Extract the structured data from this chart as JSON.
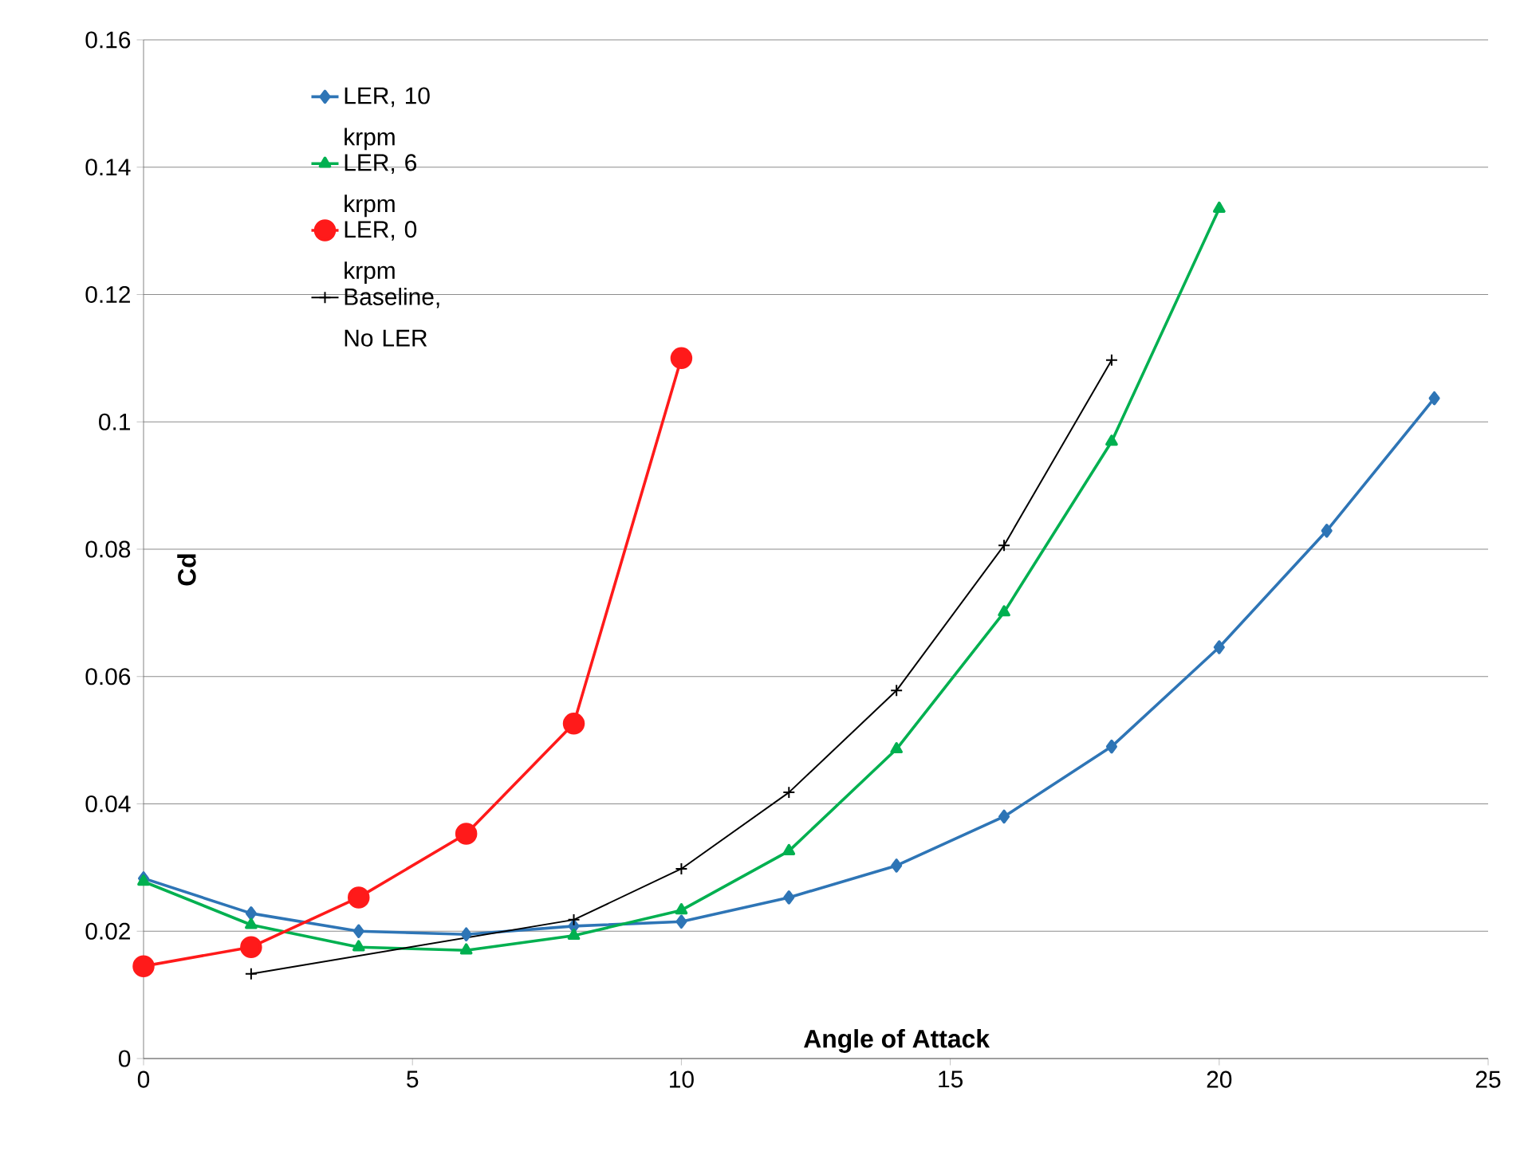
{
  "chart_data": {
    "type": "line",
    "xlabel": "Angle of Attack",
    "ylabel": "Cd",
    "xlim": [
      0,
      25
    ],
    "xticks": [
      0,
      5,
      10,
      15,
      20,
      25
    ],
    "ylim": [
      0,
      0.16
    ],
    "yticks": [
      0,
      0.02,
      0.04,
      0.06,
      0.08,
      0.1,
      0.12,
      0.14,
      0.16
    ],
    "grid": "y",
    "legend": "top left",
    "line_style": "solid",
    "series": [
      {
        "name": "LER, 10 krpm",
        "color": "#2e75b6",
        "marker": "diamond",
        "x": [
          0,
          2,
          4,
          6,
          8,
          10,
          12,
          14,
          16,
          18,
          20,
          22,
          24
        ],
        "values": [
          0.0283,
          0.0228,
          0.02,
          0.0195,
          0.0208,
          0.0215,
          0.0253,
          0.0303,
          0.038,
          0.049,
          0.0646,
          0.0829,
          0.1037
        ]
      },
      {
        "name": "LER, 6 krpm",
        "color": "#00b050",
        "marker": "triangle",
        "x": [
          0,
          2,
          4,
          6,
          8,
          10,
          12,
          14,
          16,
          18,
          20
        ],
        "values": [
          0.0278,
          0.021,
          0.0175,
          0.017,
          0.0193,
          0.0233,
          0.0326,
          0.0486,
          0.0701,
          0.0969,
          0.1335
        ]
      },
      {
        "name": "LER, 0 krpm",
        "color": "#ff1a1a",
        "marker": "circle",
        "x": [
          0,
          2,
          4,
          6,
          8,
          10
        ],
        "values": [
          0.0145,
          0.0175,
          0.0253,
          0.0353,
          0.0526,
          0.11
        ]
      },
      {
        "name": "Baseline, No LER",
        "color": "#000000",
        "marker": "cross",
        "x": [
          2,
          8,
          10,
          12,
          14,
          16,
          18
        ],
        "values": [
          0.0133,
          0.0218,
          0.0298,
          0.0418,
          0.0578,
          0.0806,
          0.1097
        ]
      }
    ]
  }
}
